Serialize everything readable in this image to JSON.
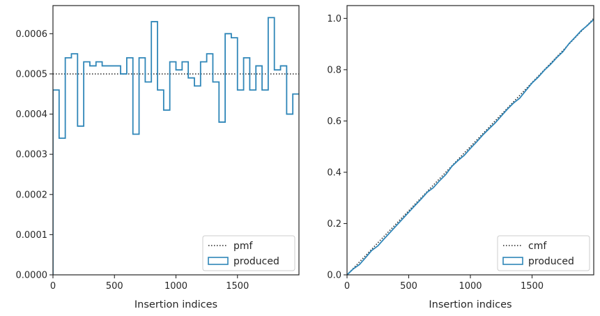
{
  "colors": {
    "produced": "#2f86b8",
    "reference": "#222222",
    "axes": "#262626",
    "legend_border": "#cccccc"
  },
  "chart_data": [
    {
      "type": "line",
      "drawstyle": "steps-post",
      "xlabel": "Insertion indices",
      "ylabel": "",
      "xlim": [
        0,
        2000
      ],
      "ylim": [
        0,
        0.00067
      ],
      "xticks": [
        0,
        500,
        1000,
        1500
      ],
      "xtick_labels": [
        "0",
        "500",
        "1000",
        "1500"
      ],
      "yticks": [
        0,
        0.0001,
        0.0002,
        0.0003,
        0.0004,
        0.0005,
        0.0006
      ],
      "ytick_labels": [
        "0.0000",
        "0.0001",
        "0.0002",
        "0.0003",
        "0.0004",
        "0.0005",
        "0.0006"
      ],
      "grid": false,
      "legend_position": "lower right",
      "series": [
        {
          "name": "pmf",
          "style": "dotted",
          "x": [
            0,
            2000
          ],
          "y": [
            0.0005,
            0.0005
          ]
        },
        {
          "name": "produced",
          "style": "step",
          "x": [
            0,
            50,
            100,
            150,
            200,
            250,
            300,
            350,
            400,
            450,
            500,
            550,
            600,
            650,
            700,
            750,
            800,
            850,
            900,
            950,
            1000,
            1050,
            1100,
            1150,
            1200,
            1250,
            1300,
            1350,
            1400,
            1450,
            1500,
            1550,
            1600,
            1650,
            1700,
            1750,
            1800,
            1850,
            1900,
            1950,
            2000
          ],
          "y": [
            0.00046,
            0.00034,
            0.00054,
            0.00055,
            0.00037,
            0.00053,
            0.00052,
            0.00053,
            0.00052,
            0.00052,
            0.00052,
            0.0005,
            0.00054,
            0.00035,
            0.00054,
            0.00048,
            0.00063,
            0.00046,
            0.00041,
            0.00053,
            0.00051,
            0.00053,
            0.00049,
            0.00047,
            0.00053,
            0.00055,
            0.00048,
            0.00038,
            0.0006,
            0.00059,
            0.00046,
            0.00054,
            0.00046,
            0.00052,
            0.00046,
            0.00064,
            0.00051,
            0.00052,
            0.0004,
            0.00045,
            0.00045
          ]
        }
      ],
      "legend": [
        "pmf",
        "produced"
      ]
    },
    {
      "type": "line",
      "xlabel": "Insertion indices",
      "ylabel": "",
      "xlim": [
        0,
        2000
      ],
      "ylim": [
        0,
        1.05
      ],
      "xticks": [
        0,
        500,
        1000,
        1500
      ],
      "xtick_labels": [
        "0",
        "500",
        "1000",
        "1500"
      ],
      "yticks": [
        0,
        0.2,
        0.4,
        0.6,
        0.8,
        1.0
      ],
      "ytick_labels": [
        "0.0",
        "0.2",
        "0.4",
        "0.6",
        "0.8",
        "1.0"
      ],
      "grid": false,
      "legend_position": "lower right",
      "series": [
        {
          "name": "cmf",
          "style": "dotted",
          "x": [
            0,
            2000
          ],
          "y": [
            0,
            1.0
          ]
        },
        {
          "name": "produced",
          "style": "line",
          "x": [
            0,
            50,
            100,
            150,
            200,
            250,
            300,
            350,
            400,
            450,
            500,
            550,
            600,
            650,
            700,
            750,
            800,
            850,
            900,
            950,
            1000,
            1050,
            1100,
            1150,
            1200,
            1250,
            1300,
            1350,
            1400,
            1450,
            1500,
            1550,
            1600,
            1650,
            1700,
            1750,
            1800,
            1850,
            1900,
            1950,
            2000
          ],
          "y": [
            0,
            0.023,
            0.04,
            0.067,
            0.095,
            0.113,
            0.14,
            0.166,
            0.192,
            0.218,
            0.244,
            0.27,
            0.295,
            0.322,
            0.34,
            0.367,
            0.391,
            0.423,
            0.446,
            0.466,
            0.493,
            0.518,
            0.545,
            0.569,
            0.592,
            0.619,
            0.646,
            0.67,
            0.689,
            0.719,
            0.748,
            0.771,
            0.798,
            0.821,
            0.847,
            0.87,
            0.902,
            0.927,
            0.953,
            0.973,
            0.996
          ]
        }
      ],
      "legend": [
        "cmf",
        "produced"
      ]
    }
  ]
}
